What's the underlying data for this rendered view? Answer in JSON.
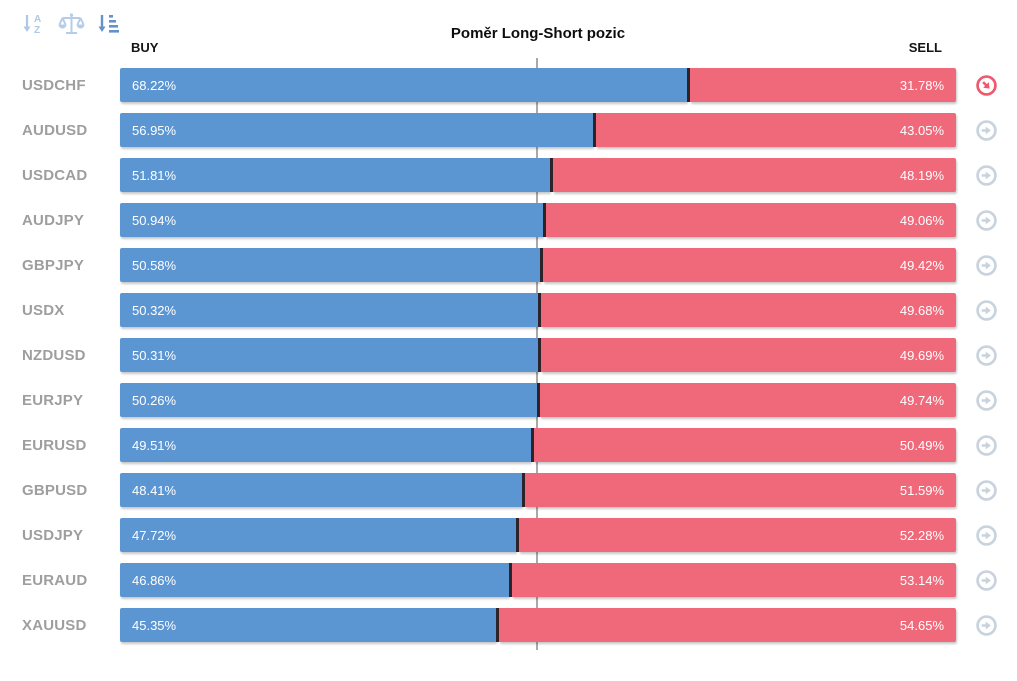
{
  "title": "Poměr Long-Short pozic",
  "columns": {
    "buy_label": "BUY",
    "sell_label": "SELL"
  },
  "toolbar": {
    "icons": [
      {
        "name": "sort-alpha-icon",
        "color": "#aec8e6"
      },
      {
        "name": "balance-scale-icon",
        "color": "#b6cde9"
      },
      {
        "name": "sort-amount-icon",
        "color": "#6593c9",
        "active": true
      }
    ]
  },
  "colors": {
    "buy": "#5b96d3",
    "sell": "#f0697a",
    "divider": "#2e2328",
    "pair_label": "#9e9e9e",
    "trend_neutral": "#c8d3de",
    "trend_down": "#f0586c",
    "midline": "#a9a9a9"
  },
  "chart_data": {
    "type": "bar",
    "orientation": "horizontal-stacked",
    "title": "Poměr Long-Short pozic",
    "categories": [
      "USDCHF",
      "AUDUSD",
      "USDCAD",
      "AUDJPY",
      "GBPJPY",
      "USDX",
      "NZDUSD",
      "EURJPY",
      "EURUSD",
      "GBPUSD",
      "USDJPY",
      "EURAUD",
      "XAUUSD"
    ],
    "series": [
      {
        "name": "BUY",
        "values": [
          68.22,
          56.95,
          51.81,
          50.94,
          50.58,
          50.32,
          50.31,
          50.26,
          49.51,
          48.41,
          47.72,
          46.86,
          45.35
        ]
      },
      {
        "name": "SELL",
        "values": [
          31.78,
          43.05,
          48.19,
          49.06,
          49.42,
          49.68,
          49.69,
          49.74,
          50.49,
          51.59,
          52.28,
          53.14,
          54.65
        ]
      }
    ],
    "xlim": [
      0,
      100
    ],
    "midline_percent": 50,
    "legend_position": "top",
    "grid": false
  },
  "rows": [
    {
      "pair": "USDCHF",
      "buy": 68.22,
      "sell": 31.78,
      "buy_label": "68.22%",
      "sell_label": "31.78%",
      "trend": "down"
    },
    {
      "pair": "AUDUSD",
      "buy": 56.95,
      "sell": 43.05,
      "buy_label": "56.95%",
      "sell_label": "43.05%",
      "trend": "right"
    },
    {
      "pair": "USDCAD",
      "buy": 51.81,
      "sell": 48.19,
      "buy_label": "51.81%",
      "sell_label": "48.19%",
      "trend": "right"
    },
    {
      "pair": "AUDJPY",
      "buy": 50.94,
      "sell": 49.06,
      "buy_label": "50.94%",
      "sell_label": "49.06%",
      "trend": "right"
    },
    {
      "pair": "GBPJPY",
      "buy": 50.58,
      "sell": 49.42,
      "buy_label": "50.58%",
      "sell_label": "49.42%",
      "trend": "right"
    },
    {
      "pair": "USDX",
      "buy": 50.32,
      "sell": 49.68,
      "buy_label": "50.32%",
      "sell_label": "49.68%",
      "trend": "right"
    },
    {
      "pair": "NZDUSD",
      "buy": 50.31,
      "sell": 49.69,
      "buy_label": "50.31%",
      "sell_label": "49.69%",
      "trend": "right"
    },
    {
      "pair": "EURJPY",
      "buy": 50.26,
      "sell": 49.74,
      "buy_label": "50.26%",
      "sell_label": "49.74%",
      "trend": "right"
    },
    {
      "pair": "EURUSD",
      "buy": 49.51,
      "sell": 50.49,
      "buy_label": "49.51%",
      "sell_label": "50.49%",
      "trend": "right"
    },
    {
      "pair": "GBPUSD",
      "buy": 48.41,
      "sell": 51.59,
      "buy_label": "48.41%",
      "sell_label": "51.59%",
      "trend": "right"
    },
    {
      "pair": "USDJPY",
      "buy": 47.72,
      "sell": 52.28,
      "buy_label": "47.72%",
      "sell_label": "52.28%",
      "trend": "right"
    },
    {
      "pair": "EURAUD",
      "buy": 46.86,
      "sell": 53.14,
      "buy_label": "46.86%",
      "sell_label": "53.14%",
      "trend": "right"
    },
    {
      "pair": "XAUUSD",
      "buy": 45.35,
      "sell": 54.65,
      "buy_label": "45.35%",
      "sell_label": "54.65%",
      "trend": "right"
    }
  ]
}
